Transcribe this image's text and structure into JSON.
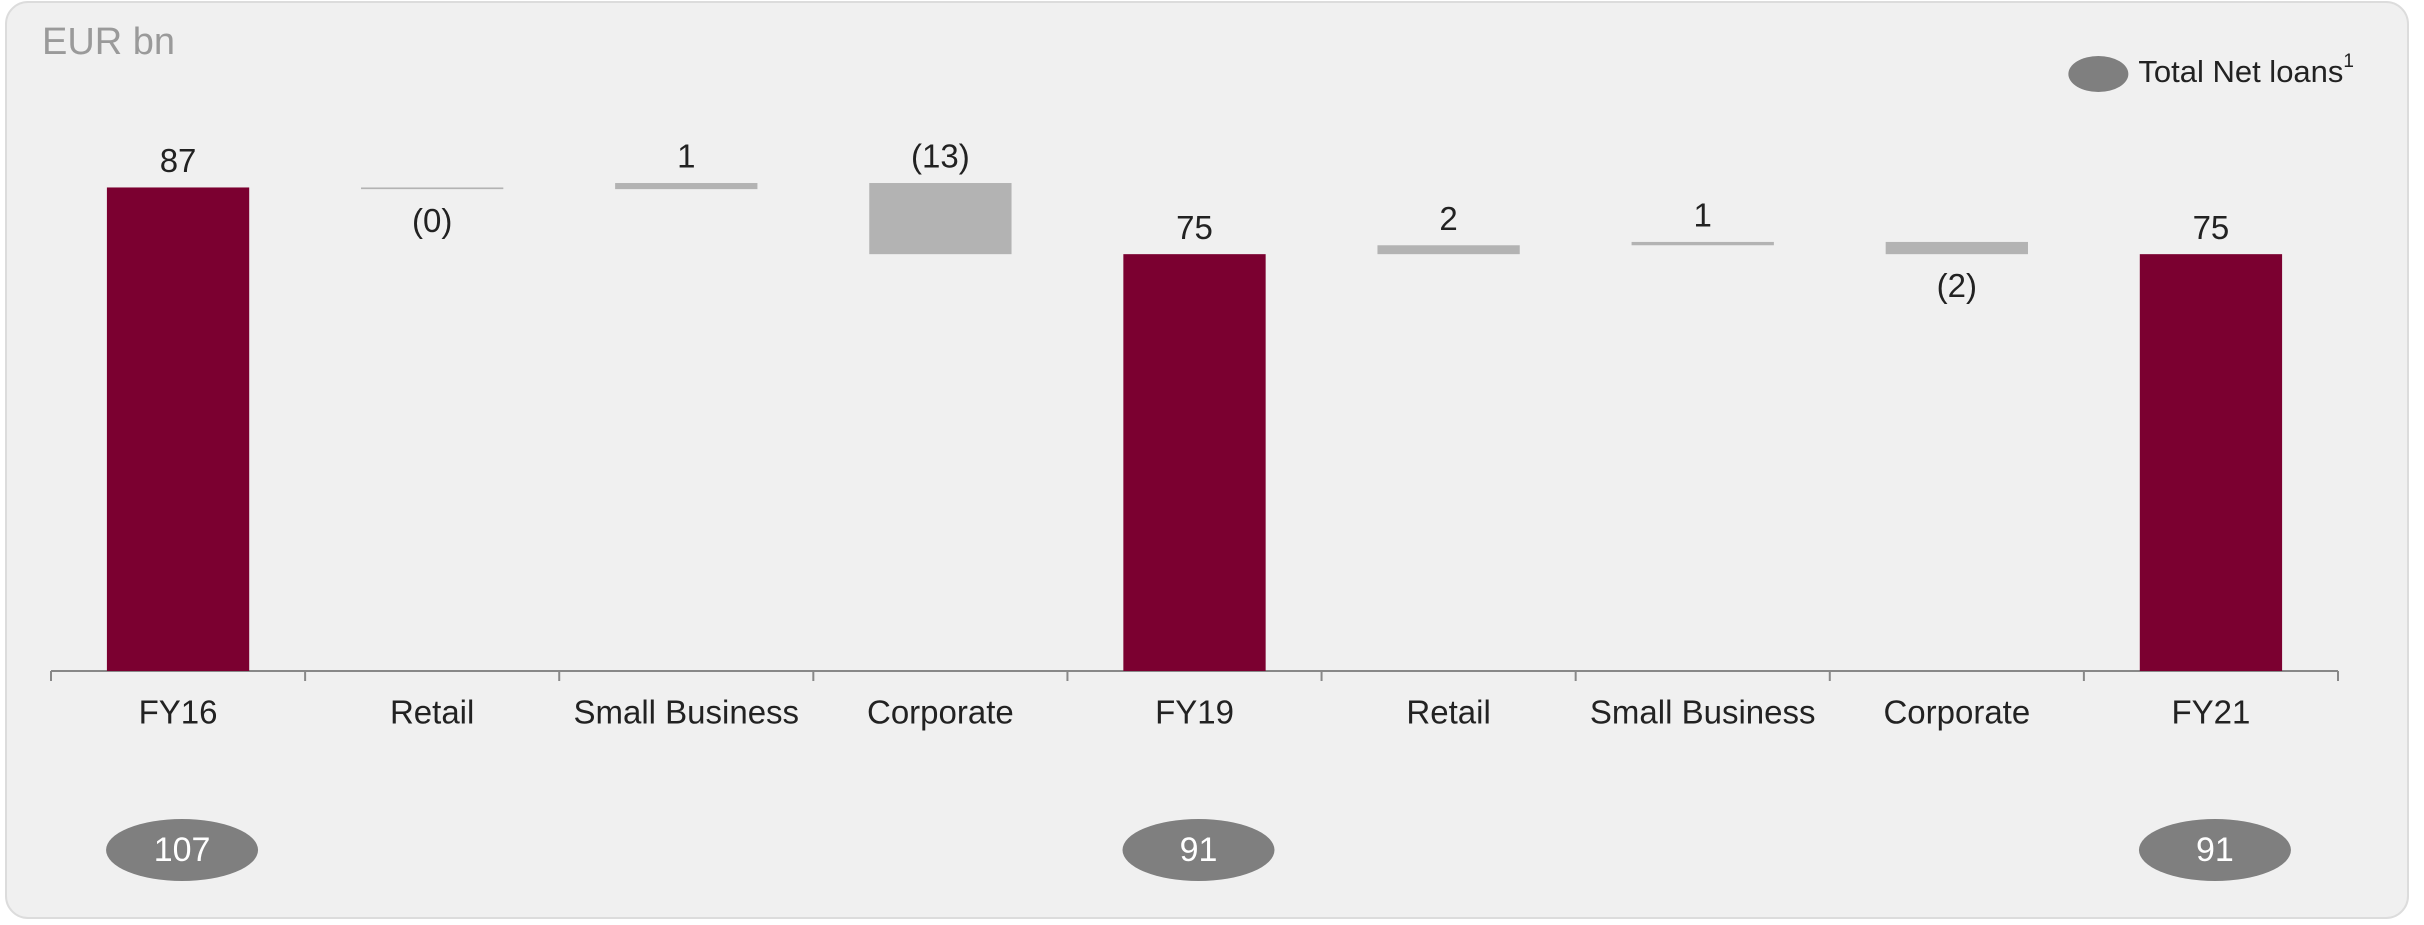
{
  "chart_data": {
    "type": "waterfall",
    "unit_label": "EUR bn",
    "categories": [
      "FY16",
      "Retail",
      "Small Business",
      "Corporate",
      "FY19",
      "Retail",
      "Small Business",
      "Corporate",
      "FY21"
    ],
    "values": [
      87,
      -0.3,
      1.1,
      -12.8,
      75,
      1.6,
      0.6,
      -2.2,
      75
    ],
    "value_labels": [
      "87",
      "(0)",
      "1",
      "(13)",
      "75",
      "2",
      "1",
      "(2)",
      "75"
    ],
    "measures": [
      "total",
      "relative",
      "relative",
      "relative",
      "total",
      "relative",
      "relative",
      "relative",
      "total"
    ],
    "total_color": "#7b0030",
    "delta_color": "#b3b3b3",
    "ylim": [
      0,
      95
    ],
    "total_net_loans": {
      "name": "Total Net loans",
      "note": "1",
      "color": "#7f7f7f",
      "values": [
        107,
        null,
        null,
        null,
        91,
        null,
        null,
        null,
        91
      ]
    },
    "legend": "top-right"
  }
}
